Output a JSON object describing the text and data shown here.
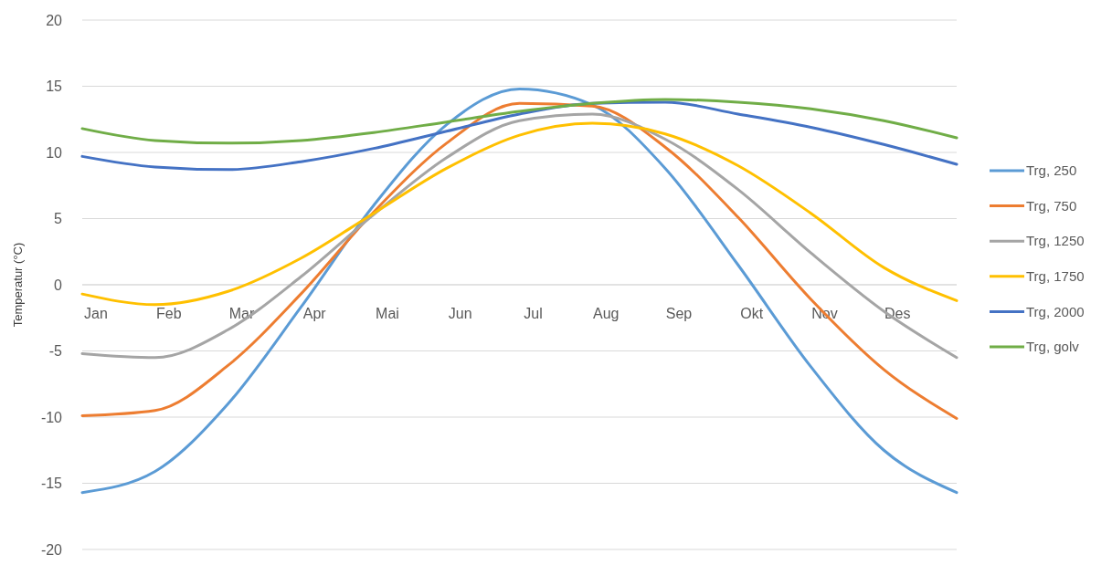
{
  "chart_data": {
    "type": "line",
    "ylabel": "Temperatur (°C)",
    "categories": [
      "Jan",
      "Feb",
      "Mar",
      "Apr",
      "Mai",
      "Jun",
      "Jul",
      "Aug",
      "Sep",
      "Okt",
      "Nov",
      "Des",
      null
    ],
    "ylim": [
      -20,
      20
    ],
    "yticks": [
      -20,
      -15,
      -10,
      -5,
      0,
      5,
      10,
      15,
      20
    ],
    "grid": "y",
    "legend": "right",
    "marker": "none",
    "line_style": "solid",
    "series": [
      {
        "name": "Trg, 250",
        "color": "#5b9bd5",
        "values": [
          -15.7,
          -14.1,
          -9.0,
          -1.7,
          6.0,
          12.1,
          14.8,
          13.6,
          8.8,
          1.5,
          -6.2,
          -12.5,
          -15.7
        ]
      },
      {
        "name": "Trg, 750",
        "color": "#ed7d31",
        "values": [
          -9.9,
          -9.5,
          -6.1,
          -0.7,
          5.5,
          10.7,
          13.7,
          13.5,
          10.4,
          5.1,
          -1.1,
          -6.4,
          -10.1
        ]
      },
      {
        "name": "Trg, 1250",
        "color": "#a5a5a5",
        "values": [
          -5.2,
          -5.5,
          -3.4,
          0.6,
          5.3,
          9.6,
          12.4,
          12.9,
          11.0,
          7.2,
          2.4,
          -2.0,
          -5.5
        ]
      },
      {
        "name": "Trg, 1750",
        "color": "#ffc000",
        "values": [
          -0.7,
          -1.5,
          -0.5,
          2.0,
          5.4,
          8.8,
          11.3,
          12.2,
          11.4,
          9.0,
          5.4,
          1.3,
          -1.2
        ]
      },
      {
        "name": "Trg, 2000",
        "color": "#4472c4",
        "values": [
          9.7,
          8.9,
          8.7,
          9.3,
          10.3,
          11.6,
          12.9,
          13.7,
          13.8,
          12.9,
          11.9,
          10.6,
          9.1
        ]
      },
      {
        "name": "Trg, golv",
        "color": "#70ad47",
        "values": [
          11.8,
          10.9,
          10.7,
          10.9,
          11.5,
          12.3,
          13.1,
          13.7,
          14.0,
          13.8,
          13.3,
          12.4,
          11.1
        ]
      }
    ]
  }
}
